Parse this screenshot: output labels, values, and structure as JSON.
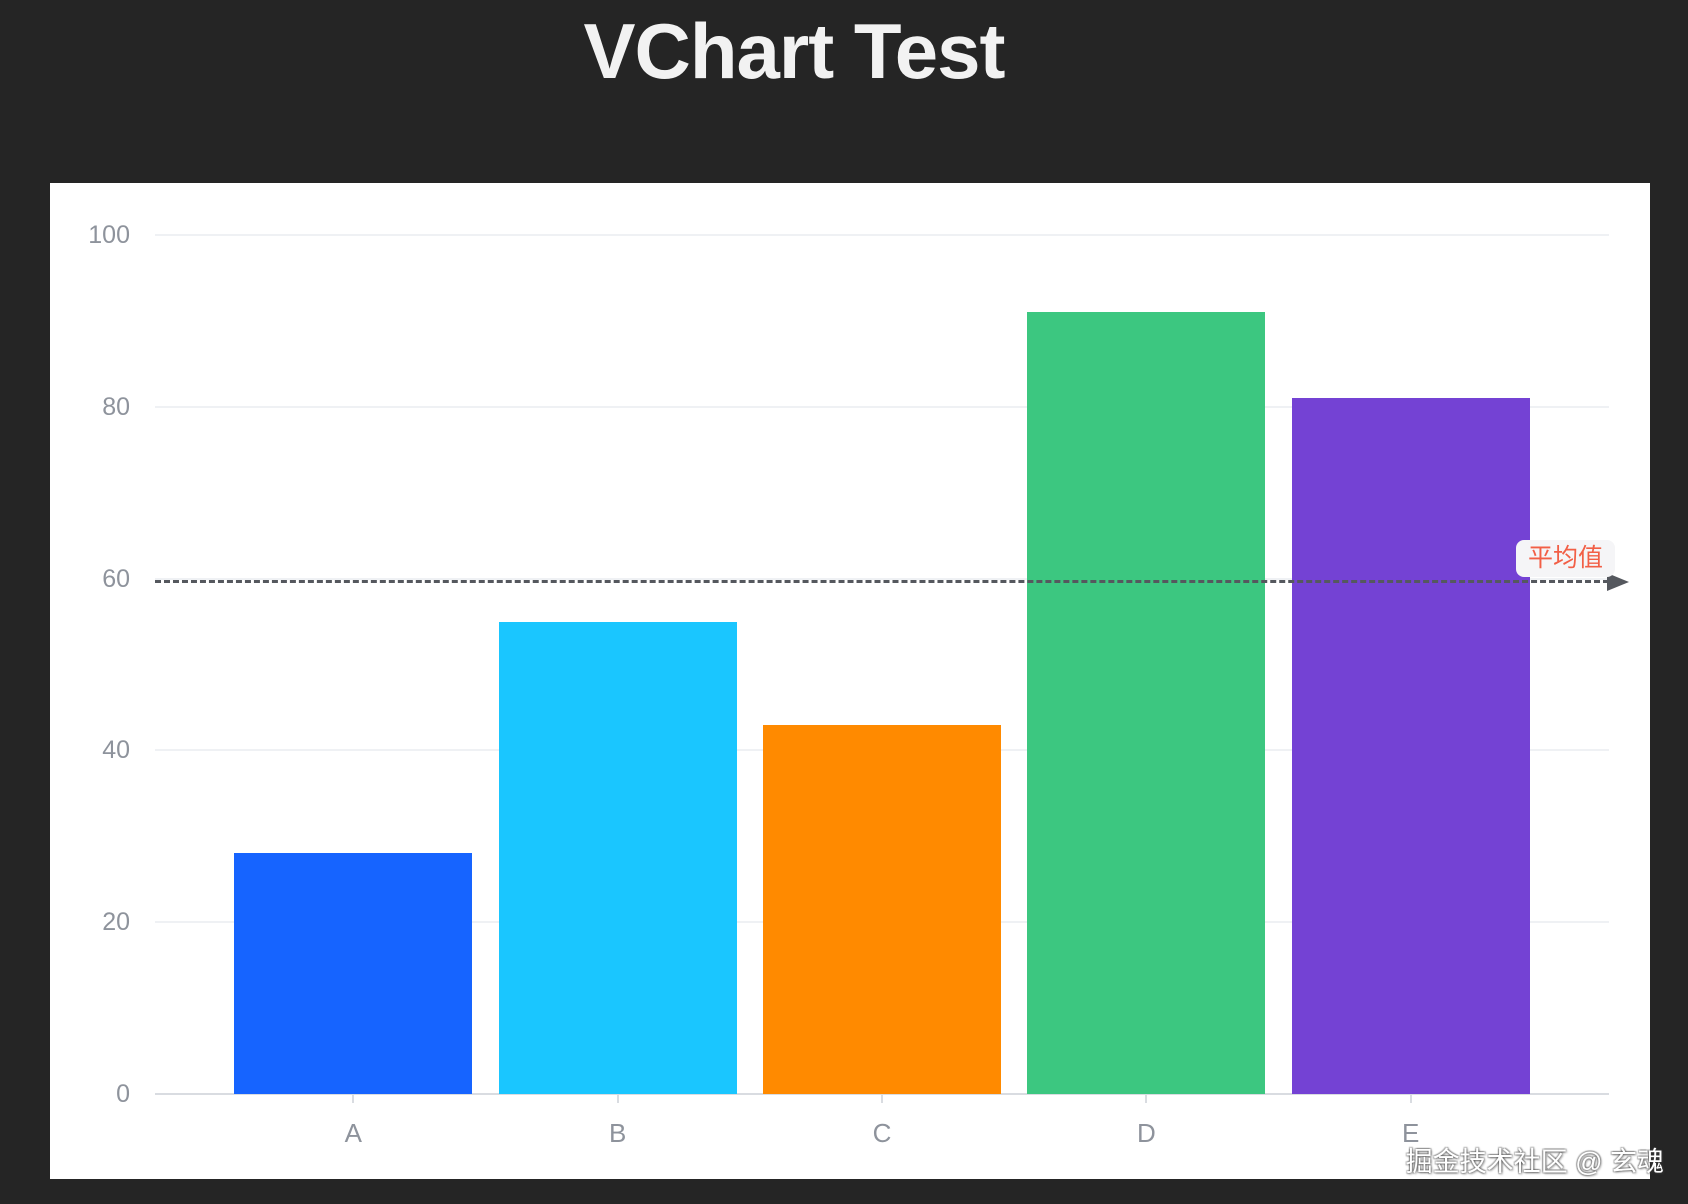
{
  "header": {
    "title": "VChart Test"
  },
  "watermark": {
    "text": "掘金技术社区 @ 玄魂"
  },
  "chart_data": {
    "type": "bar",
    "title": "VChart Test",
    "categories": [
      "A",
      "B",
      "C",
      "D",
      "E"
    ],
    "values": [
      28,
      55,
      43,
      91,
      81
    ],
    "bar_colors": [
      "#1664FF",
      "#1AC6FF",
      "#FF8A00",
      "#3CC780",
      "#7442D4"
    ],
    "xlabel": "",
    "ylabel": "",
    "ylim": [
      0,
      100
    ],
    "y_ticks": [
      0,
      20,
      40,
      60,
      80,
      100
    ],
    "grid": true,
    "legend": "none",
    "mark_line": {
      "type": "average",
      "value": 59.6,
      "label": "平均值",
      "line_style": "dashed",
      "line_color": "#55585E",
      "label_color": "#F25F46",
      "label_bg": "#F5F5F7",
      "arrow": "right"
    }
  },
  "theme": {
    "page_bg": "#252525",
    "panel_bg": "#FFFFFF",
    "title_color": "#F2F2F2",
    "axis_label_color": "#8E939C",
    "gridline_color": "#EFF1F4",
    "axis_line_color": "#D9DCE1"
  }
}
